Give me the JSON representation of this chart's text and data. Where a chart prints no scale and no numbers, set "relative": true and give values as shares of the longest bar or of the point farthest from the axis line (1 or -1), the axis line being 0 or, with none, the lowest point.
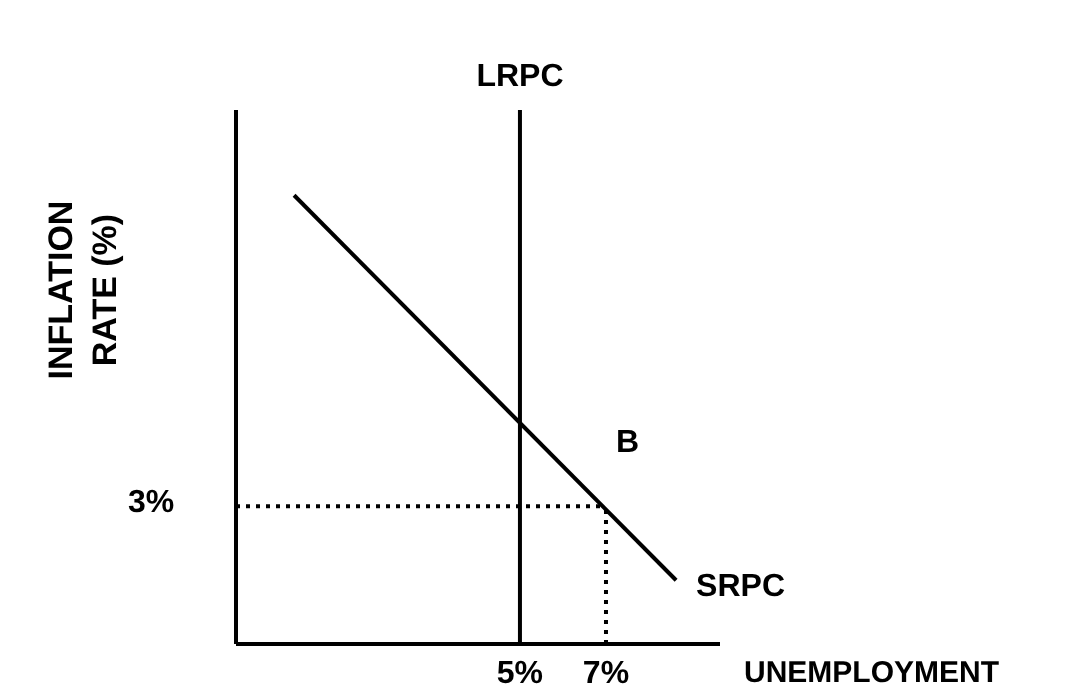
{
  "chart_data": {
    "type": "line",
    "xlabel": "UNEMPLOYMENT",
    "ylabel": "INFLATION RATE (%)",
    "relative": true,
    "xlim": [
      -1.6,
      9.65
    ],
    "xticks": [
      {
        "value": 5,
        "label": "5%"
      },
      {
        "value": 7,
        "label": "7%"
      }
    ],
    "series": [
      {
        "name": "SRPC",
        "color": "#000000",
        "x": [
          -0.25,
          8.63
        ],
        "values": [
          1,
          0.142
        ],
        "line_style": "solid"
      },
      {
        "color": "#000000",
        "x": [
          -1.6,
          7
        ],
        "values": [
          0.307,
          0.307
        ],
        "line_style": "dotted"
      },
      {
        "color": "#000000",
        "x": [
          7,
          7
        ],
        "values": [
          0,
          0.307
        ],
        "line_style": "dotted"
      }
    ],
    "ref_lines": [
      {
        "axis": "x",
        "value": 5,
        "label": "LRPC",
        "color": "#000000"
      }
    ],
    "annotations": [
      "3%",
      "B"
    ],
    "marker": "none",
    "grid": false
  }
}
